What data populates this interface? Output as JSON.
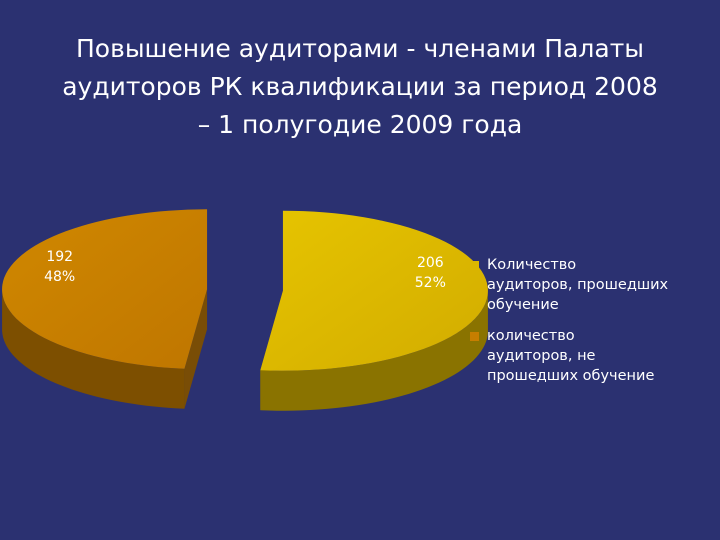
{
  "slide": {
    "title_lines": [
      "Повышение аудиторами  - членами Палаты",
      "аудиторов РК квалификации за период  2008",
      "– 1 полугодие 2009 года"
    ]
  },
  "chart_data": {
    "type": "pie",
    "style": "3d-exploded",
    "title": "Повышение аудиторами  - членами Палаты аудиторов РК квалификации за период  2008 – 1 полугодие 2009 года",
    "legend_position": "right",
    "slices": [
      {
        "name": "Количество\nаудиторов, прошедших\nобучение",
        "value": 206,
        "percent_label": "52%",
        "color": "#dcb800",
        "side_color": "#8a7300"
      },
      {
        "name": "количество\nаудиторов, не\nпрошедших обучение",
        "value": 192,
        "percent_label": "48%",
        "color": "#c77e00",
        "side_color": "#7d4f00"
      }
    ]
  }
}
